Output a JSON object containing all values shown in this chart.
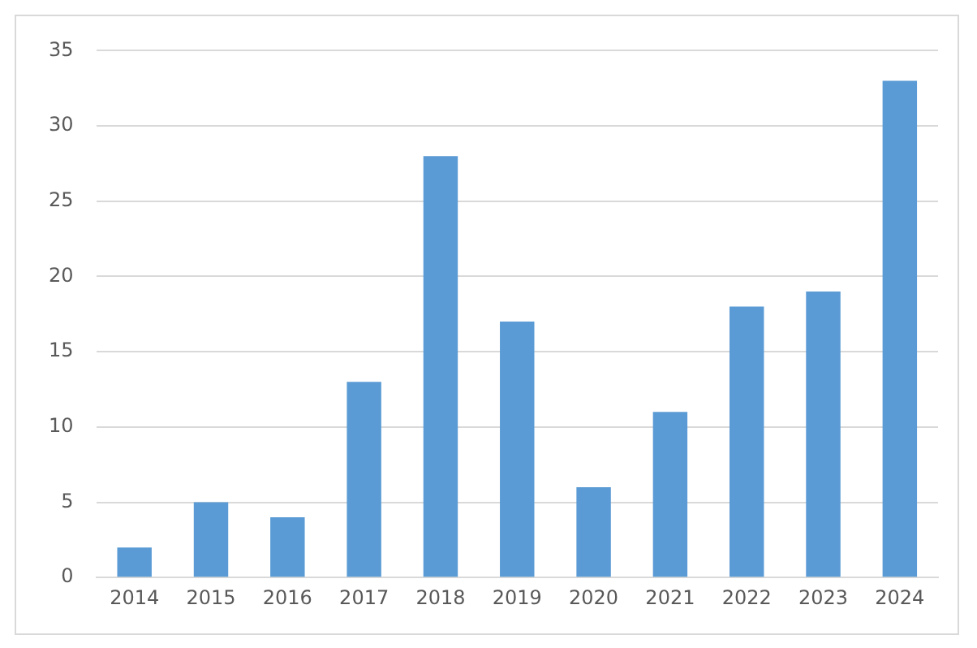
{
  "chart_data": {
    "type": "bar",
    "categories": [
      "2014",
      "2015",
      "2016",
      "2017",
      "2018",
      "2019",
      "2020",
      "2021",
      "2022",
      "2023",
      "2024"
    ],
    "values": [
      2,
      5,
      4,
      13,
      28,
      17,
      6,
      11,
      18,
      19,
      33
    ],
    "color": "#5b9bd5",
    "ylim": [
      0,
      35
    ],
    "yticks": [
      0,
      5,
      10,
      15,
      20,
      25,
      30,
      35
    ],
    "grid": "y",
    "legend": false
  }
}
